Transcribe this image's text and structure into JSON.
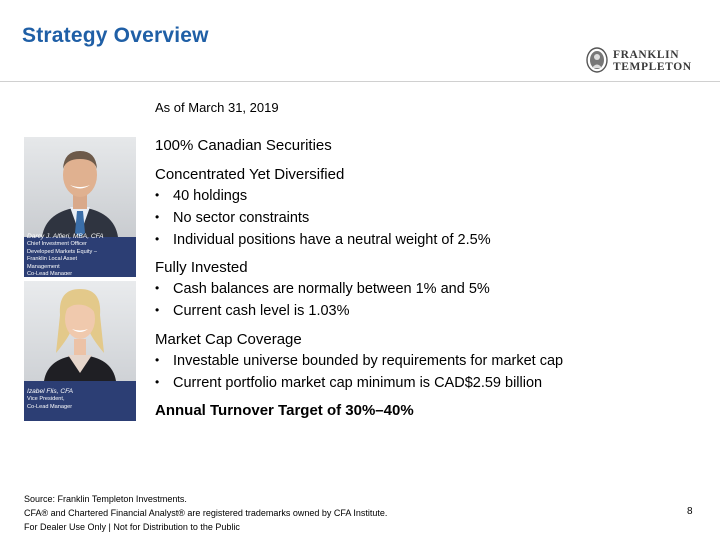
{
  "slide": {
    "title": "Strategy Overview",
    "as_of": "As of March 31, 2019",
    "headline": "100% Canadian Securities",
    "page_number": "8"
  },
  "logo": {
    "line1": "FRANKLIN",
    "line2": "TEMPLETON"
  },
  "people": [
    {
      "name": "Darcy J. Alfieri, MBA, CFA",
      "lines": [
        "Chief Investment Officer",
        "Developed Markets Equity –",
        "Franklin Local Asset",
        "Management",
        "Co-Lead Manager"
      ]
    },
    {
      "name": "Izabel Flis, CFA",
      "lines": [
        "Vice President,",
        "Co-Lead Manager"
      ]
    }
  ],
  "sections": [
    {
      "heading": "Concentrated Yet Diversified",
      "bullets": [
        "40 holdings",
        "No sector constraints",
        "Individual positions have a neutral weight of 2.5%"
      ]
    },
    {
      "heading": "Fully Invested",
      "bullets": [
        "Cash balances are normally between 1% and 5%",
        "Current cash level is 1.03%"
      ]
    },
    {
      "heading": "Market Cap Coverage",
      "bullets": [
        "Investable universe bounded by requirements for market cap",
        "Current portfolio market cap minimum is CAD$2.59 billion"
      ]
    },
    {
      "heading": "Annual Turnover Target of 30%–40%",
      "bullets": []
    }
  ],
  "bullet_glyph": "•",
  "footer": {
    "source": "Source: Franklin Templeton Investments.",
    "trademark": "CFA® and Chartered Financial Analyst® are registered trademarks owned by CFA Institute.",
    "disclaimer": "For Dealer Use Only | Not for Distribution to the Public"
  },
  "colors": {
    "title": "#1f5fa6",
    "photo_background": "#2c3e74"
  },
  "icons": {
    "logo": "franklin-templeton-emblem-icon"
  }
}
